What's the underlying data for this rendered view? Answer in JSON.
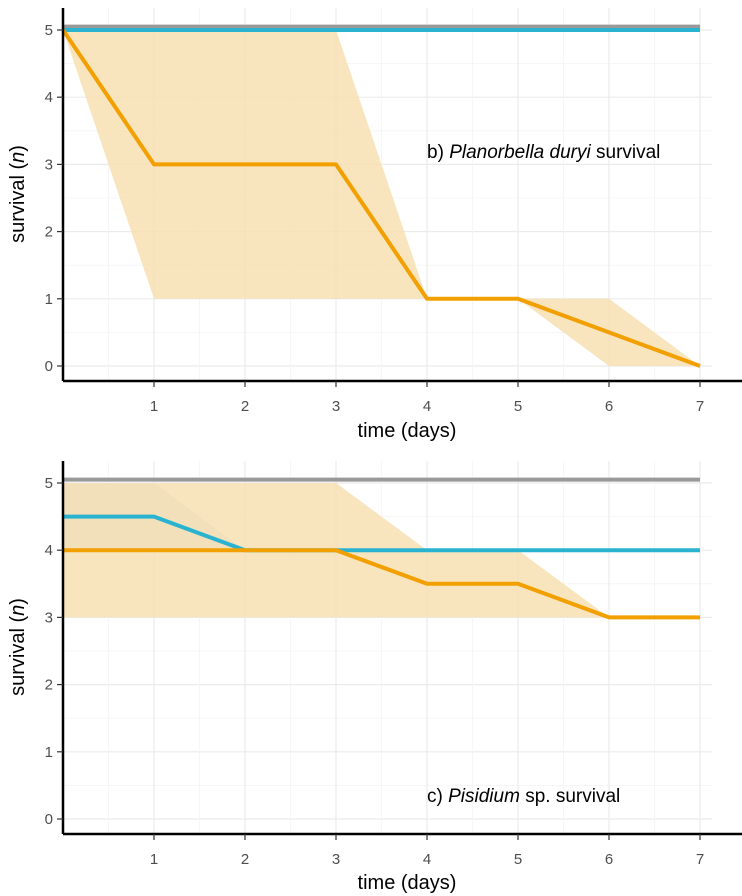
{
  "chart_data": [
    {
      "type": "line",
      "annotation": {
        "prefix": "b) ",
        "italic": "Planorbella duryi",
        "suffix": " survival"
      },
      "xlabel": "time (days)",
      "ylabel_prefix": "survival (",
      "ylabel_italic": "n",
      "ylabel_suffix": ")",
      "xlim": [
        0,
        7
      ],
      "ylim": [
        0,
        5
      ],
      "xticks": [
        1,
        2,
        3,
        4,
        5,
        6,
        7
      ],
      "yticks": [
        0,
        1,
        2,
        3,
        4,
        5
      ],
      "grid": true,
      "series": [
        {
          "color": "#999999",
          "x": [
            0,
            7
          ],
          "y": [
            5.05,
            5.05
          ]
        },
        {
          "color": "#29b3d1",
          "x": [
            0,
            7
          ],
          "y": [
            5,
            5
          ]
        },
        {
          "color": "#f2a000",
          "x": [
            0,
            1,
            3,
            4,
            5,
            6,
            7
          ],
          "y": [
            5,
            3,
            3,
            1,
            1,
            0.5,
            0
          ]
        }
      ],
      "bands": [
        {
          "color": "#f7dfb2",
          "x": [
            0,
            1,
            3,
            4,
            5,
            6,
            7
          ],
          "lower": [
            5,
            1,
            1,
            1,
            1,
            0,
            0
          ],
          "upper": [
            5,
            5,
            5,
            1,
            1,
            1,
            0
          ]
        }
      ]
    },
    {
      "type": "line",
      "annotation": {
        "prefix": "c) ",
        "italic": "Pisidium",
        "suffix": " sp. survival"
      },
      "xlabel": "time (days)",
      "ylabel_prefix": "survival (",
      "ylabel_italic": "n",
      "ylabel_suffix": ")",
      "xlim": [
        0,
        7
      ],
      "ylim": [
        0,
        5
      ],
      "xticks": [
        1,
        2,
        3,
        4,
        5,
        6,
        7
      ],
      "yticks": [
        0,
        1,
        2,
        3,
        4,
        5
      ],
      "grid": true,
      "series": [
        {
          "color": "#999999",
          "x": [
            0,
            7
          ],
          "y": [
            5.05,
            5.05
          ]
        },
        {
          "color": "#29b3d1",
          "x": [
            0,
            1,
            2,
            3,
            4,
            5,
            6,
            7
          ],
          "y": [
            4.5,
            4.5,
            4,
            4,
            4,
            4,
            4,
            4
          ]
        },
        {
          "color": "#f2a000",
          "x": [
            0,
            1,
            2,
            3,
            4,
            5,
            6,
            7
          ],
          "y": [
            4,
            4,
            4,
            4,
            3.5,
            3.5,
            3,
            3
          ]
        }
      ],
      "bands": [
        {
          "color": "#cfe0e2",
          "x": [
            0,
            1,
            2
          ],
          "lower": [
            4,
            4,
            4
          ],
          "upper": [
            5,
            5,
            4
          ]
        },
        {
          "color": "#f7dfb2",
          "x": [
            0,
            1,
            3,
            4,
            5,
            6,
            7
          ],
          "lower": [
            3,
            3,
            3,
            3,
            3,
            3,
            3
          ],
          "upper": [
            5,
            5,
            5,
            4,
            4,
            3,
            3
          ]
        }
      ]
    }
  ]
}
